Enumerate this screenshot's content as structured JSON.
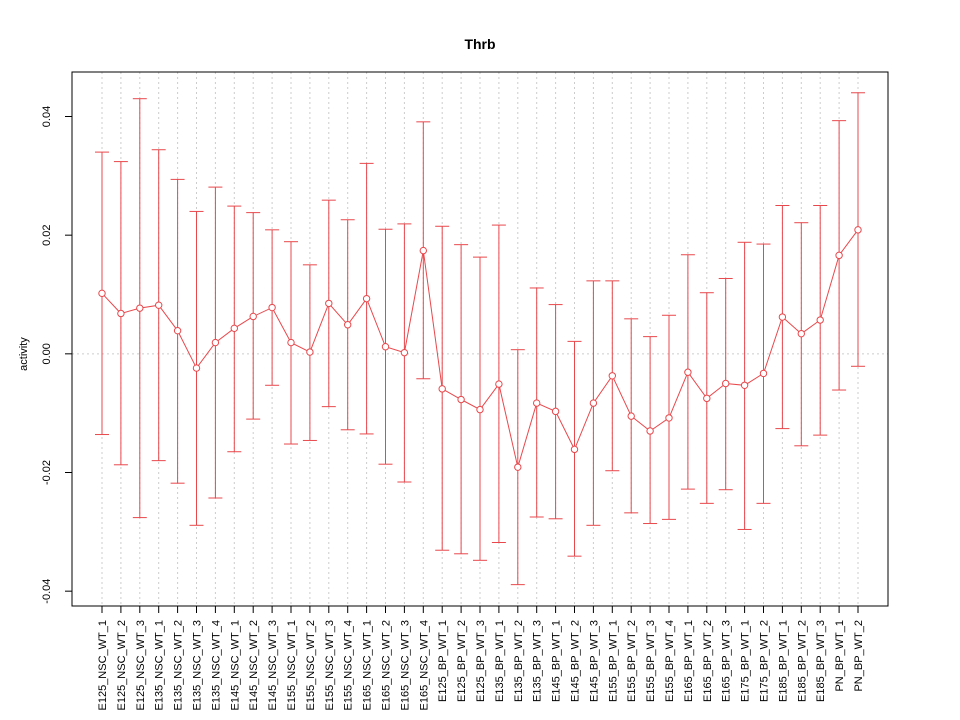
{
  "chart_data": {
    "type": "line",
    "title": "Thrb",
    "xlabel": "",
    "ylabel": "activity",
    "ylim": [
      -0.0425,
      0.0475
    ],
    "yticks": [
      -0.04,
      -0.02,
      0.0,
      0.02,
      0.04
    ],
    "ytick_labels": [
      "-0.04",
      "-0.02",
      "0.00",
      "0.02",
      "0.04"
    ],
    "grid": true,
    "error_bars": true,
    "series_color": "#e8484c",
    "grid_color": "#cccccc",
    "categories": [
      "E125_NSC_WT_1",
      "E125_NSC_WT_2",
      "E125_NSC_WT_3",
      "E135_NSC_WT_1",
      "E135_NSC_WT_2",
      "E135_NSC_WT_3",
      "E135_NSC_WT_4",
      "E145_NSC_WT_1",
      "E145_NSC_WT_2",
      "E145_NSC_WT_3",
      "E155_NSC_WT_1",
      "E155_NSC_WT_2",
      "E155_NSC_WT_3",
      "E155_NSC_WT_4",
      "E165_NSC_WT_1",
      "E165_NSC_WT_2",
      "E165_NSC_WT_3",
      "E165_NSC_WT_4",
      "E125_BP_WT_1",
      "E125_BP_WT_2",
      "E125_BP_WT_3",
      "E135_BP_WT_1",
      "E135_BP_WT_2",
      "E135_BP_WT_3",
      "E145_BP_WT_1",
      "E145_BP_WT_2",
      "E145_BP_WT_3",
      "E155_BP_WT_1",
      "E155_BP_WT_2",
      "E155_BP_WT_3",
      "E155_BP_WT_4",
      "E165_BP_WT_1",
      "E165_BP_WT_2",
      "E165_BP_WT_3",
      "E175_BP_WT_1",
      "E175_BP_WT_2",
      "E185_BP_WT_1",
      "E185_BP_WT_2",
      "E185_BP_WT_3",
      "PN_BP_WT_1",
      "PN_BP_WT_2"
    ],
    "values": [
      0.0102,
      0.0068,
      0.0077,
      0.0082,
      0.0039,
      -0.0024,
      0.0019,
      0.0043,
      0.0063,
      0.0078,
      0.0019,
      0.0003,
      0.0085,
      0.0049,
      0.0093,
      0.0012,
      0.0002,
      0.0174,
      -0.0059,
      -0.0077,
      -0.0094,
      -0.0051,
      -0.0191,
      -0.0083,
      -0.0097,
      -0.0161,
      -0.0083,
      -0.0037,
      -0.0105,
      -0.013,
      -0.0108,
      -0.0031,
      -0.0075,
      -0.005,
      -0.0053,
      -0.0033,
      0.0062,
      0.0034,
      0.0057,
      0.0166,
      0.0209
    ],
    "upper": [
      0.034,
      0.0324,
      0.043,
      0.0344,
      0.0294,
      0.024,
      0.0281,
      0.0249,
      0.0238,
      0.0209,
      0.0189,
      0.015,
      0.0259,
      0.0226,
      0.0321,
      0.021,
      0.0219,
      0.0391,
      0.0215,
      0.0184,
      0.0163,
      0.0217,
      0.0007,
      0.0111,
      0.0083,
      0.0021,
      0.0123,
      0.0123,
      0.0059,
      0.0029,
      0.0065,
      0.0167,
      0.0103,
      0.0127,
      0.0188,
      0.0185,
      0.025,
      0.0221,
      0.025,
      0.0393,
      0.044
    ],
    "lower": [
      -0.0136,
      -0.0187,
      -0.0276,
      -0.018,
      -0.0218,
      -0.0289,
      -0.0243,
      -0.0165,
      -0.011,
      -0.0053,
      -0.0152,
      -0.0146,
      -0.0089,
      -0.0128,
      -0.0135,
      -0.0186,
      -0.0216,
      -0.0042,
      -0.0331,
      -0.0337,
      -0.0348,
      -0.0318,
      -0.0389,
      -0.0275,
      -0.0278,
      -0.0341,
      -0.0289,
      -0.0197,
      -0.0268,
      -0.0286,
      -0.0279,
      -0.0228,
      -0.0252,
      -0.0229,
      -0.0296,
      -0.0252,
      -0.0126,
      -0.0155,
      -0.0137,
      -0.0061,
      -0.0021
    ]
  }
}
